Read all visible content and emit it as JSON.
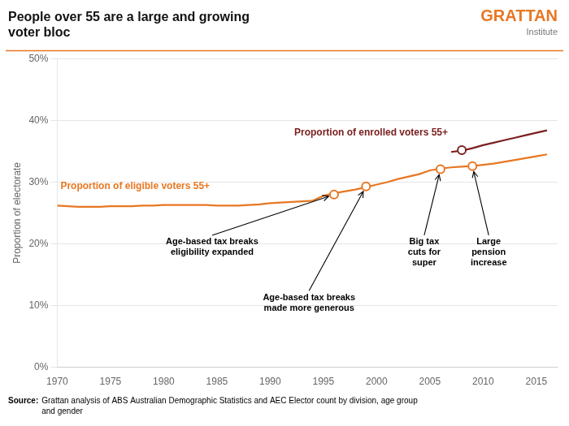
{
  "chart_data": {
    "type": "line",
    "title": [
      "People over 55 are a large and growing",
      "voter bloc"
    ],
    "brand": {
      "name": "GRATTAN",
      "subtitle": "Institute",
      "color": "#E87722"
    },
    "ylabel": "Proportion of electorate",
    "source": {
      "label": "Source:",
      "text": "Grattan analysis of ABS Australian Demographic Statistics and AEC Elector count by division, age group\nand gender"
    },
    "xlim": [
      1970,
      2017
    ],
    "xticks": [
      1970,
      1975,
      1980,
      1985,
      1990,
      1995,
      2000,
      2005,
      2010,
      2015
    ],
    "ylim": [
      0,
      0.5
    ],
    "yticks": [
      {
        "value": 0,
        "label": "0%"
      },
      {
        "value": 0.1,
        "label": "10%"
      },
      {
        "value": 0.2,
        "label": "20%"
      },
      {
        "value": 0.3,
        "label": "30%"
      },
      {
        "value": 0.4,
        "label": "40%"
      },
      {
        "value": 0.5,
        "label": "50%"
      }
    ],
    "grid": "y",
    "series": [
      {
        "name": "Proportion of eligible voters 55+",
        "color": "#E87722",
        "x": [
          1970,
          1971,
          1972,
          1973,
          1974,
          1975,
          1976,
          1977,
          1978,
          1979,
          1980,
          1981,
          1982,
          1983,
          1984,
          1985,
          1986,
          1987,
          1988,
          1989,
          1990,
          1991,
          1992,
          1993,
          1994,
          1995,
          1996,
          1997,
          1998,
          1999,
          2000,
          2001,
          2002,
          2003,
          2004,
          2005,
          2006,
          2007,
          2008,
          2009,
          2010,
          2011,
          2012,
          2013,
          2014,
          2015,
          2016
        ],
        "values": [
          0.262,
          0.261,
          0.26,
          0.26,
          0.26,
          0.261,
          0.261,
          0.261,
          0.262,
          0.262,
          0.263,
          0.263,
          0.263,
          0.263,
          0.263,
          0.262,
          0.262,
          0.262,
          0.263,
          0.264,
          0.266,
          0.267,
          0.268,
          0.269,
          0.27,
          0.278,
          0.282,
          0.285,
          0.288,
          0.292,
          0.296,
          0.3,
          0.305,
          0.309,
          0.313,
          0.319,
          0.322,
          0.324,
          0.325,
          0.326,
          0.328,
          0.33,
          0.333,
          0.336,
          0.339,
          0.342,
          0.345
        ],
        "highlight_points": [
          {
            "x": 1996,
            "y": 0.28
          },
          {
            "x": 1999,
            "y": 0.293
          },
          {
            "x": 2006,
            "y": 0.321
          },
          {
            "x": 2009,
            "y": 0.326
          }
        ]
      },
      {
        "name": "Proportion of enrolled voters 55+",
        "color": "#7B2020",
        "x": [
          2007,
          2008,
          2009,
          2010,
          2011,
          2012,
          2013,
          2014,
          2015,
          2016
        ],
        "values": [
          0.349,
          0.351,
          0.355,
          0.36,
          0.364,
          0.368,
          0.372,
          0.376,
          0.38,
          0.384
        ],
        "highlight_points": [
          {
            "x": 2008,
            "y": 0.352
          }
        ]
      }
    ],
    "annotations": [
      {
        "text": "Age-based tax breaks\neligibility expanded",
        "x": 1996,
        "y": 0.28
      },
      {
        "text": "Age-based tax breaks\nmade more generous",
        "x": 1999,
        "y": 0.293
      },
      {
        "text": "Big tax\ncuts for\nsuper",
        "x": 2006,
        "y": 0.321
      },
      {
        "text": "Large\npension\nincrease",
        "x": 2009,
        "y": 0.326
      }
    ]
  }
}
